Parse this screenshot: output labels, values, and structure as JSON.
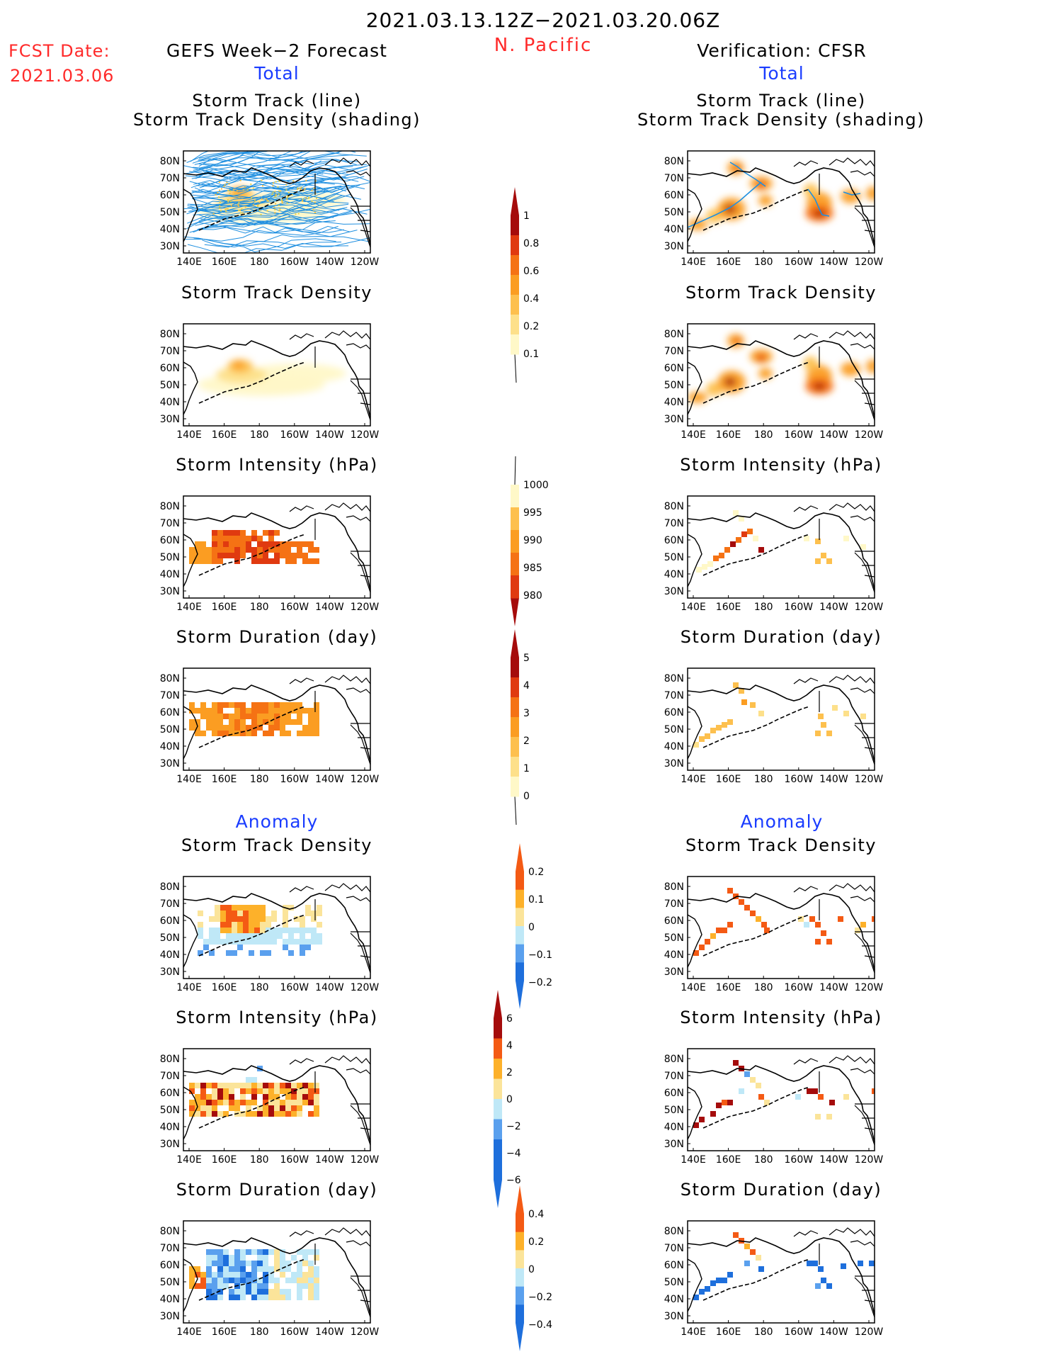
{
  "header": {
    "period": "2021.03.13.12Z−2021.03.20.06Z",
    "region": "N. Pacific",
    "fcst_label": "FCST Date:",
    "fcst_date": "2021.03.06",
    "left_title": "GEFS Week−2 Forecast",
    "right_title": "Verification: CFSR",
    "total_label": "Total",
    "anomaly_label": "Anomaly"
  },
  "colors": {
    "total_scale": [
      "#fff8c8",
      "#fde08a",
      "#fdc04e",
      "#fb9d22",
      "#f57214",
      "#e03a10",
      "#a50c0c"
    ],
    "anomaly_scale": [
      "#1e6fdc",
      "#5aa0ee",
      "#bfe8f7",
      "#ffffff",
      "#fbe49a",
      "#fdb12a",
      "#f45a14"
    ],
    "track_line": "#1f8fe0",
    "title_red": "#ff2a2a",
    "title_blue": "#1a3cff"
  },
  "panels": [
    {
      "title_lines": [
        "Storm Track (line)",
        "Storm Track Density (shading)"
      ]
    },
    {
      "title_lines": [
        "Storm Track Density"
      ]
    },
    {
      "title_lines": [
        "Storm Intensity (hPa)"
      ]
    },
    {
      "title_lines": [
        "Storm Duration (day)"
      ]
    },
    {
      "title_lines": [
        "Storm Track Density"
      ]
    },
    {
      "title_lines": [
        "Storm Intensity (hPa)"
      ]
    },
    {
      "title_lines": [
        "Storm Duration (day)"
      ]
    }
  ],
  "map_axes": {
    "lon_ticks": [
      "140E",
      "160E",
      "180",
      "160W",
      "140W",
      "120W"
    ],
    "lat_ticks": [
      "80N",
      "70N",
      "60N",
      "50N",
      "40N",
      "30N"
    ]
  },
  "colorbars": [
    {
      "name": "track-density-scale",
      "labels": [
        "1",
        "0.8",
        "0.6",
        "0.4",
        "0.2",
        "0.1"
      ]
    },
    {
      "name": "intensity-scale",
      "labels": [
        "1000",
        "995",
        "990",
        "985",
        "980"
      ]
    },
    {
      "name": "duration-scale",
      "labels": [
        "5",
        "4",
        "3",
        "2",
        "1",
        "0"
      ]
    },
    {
      "name": "density-anomaly-scale",
      "labels": [
        "0.2",
        "0.1",
        "0",
        "−0.1",
        "−0.2"
      ]
    },
    {
      "name": "intensity-anomaly-scale",
      "labels": [
        "6",
        "4",
        "2",
        "0",
        "−2",
        "−4",
        "−6"
      ]
    },
    {
      "name": "duration-anomaly-scale",
      "labels": [
        "0.4",
        "0.2",
        "0",
        "−0.2",
        "−0.4"
      ]
    }
  ]
}
